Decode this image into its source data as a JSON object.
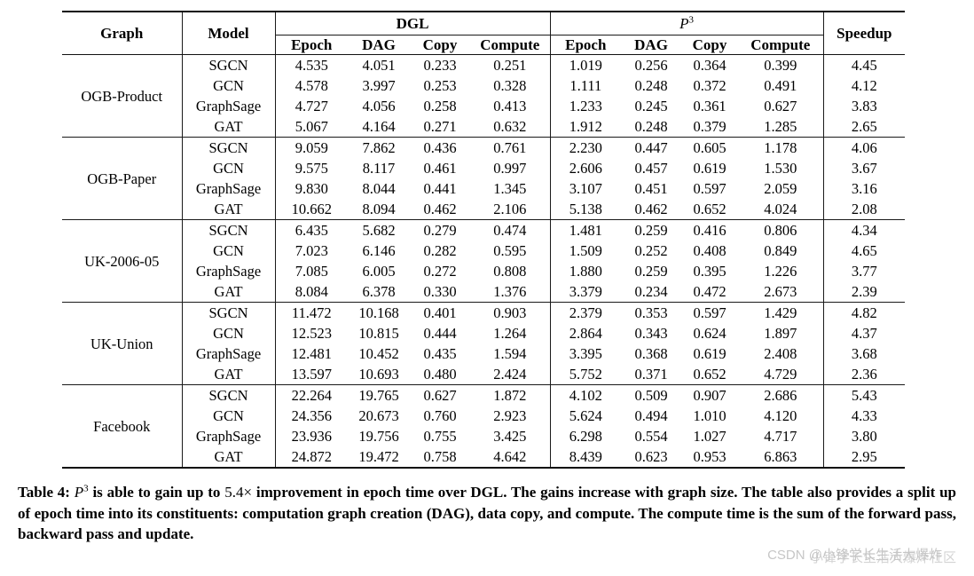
{
  "table": {
    "headers": {
      "graph": "Graph",
      "model": "Model",
      "dgl": "DGL",
      "p3_base": "P",
      "p3_sup": "3",
      "speedup": "Speedup",
      "subcols": [
        "Epoch",
        "DAG",
        "Copy",
        "Compute"
      ]
    },
    "groups": [
      {
        "graph": "OGB-Product",
        "rows": [
          {
            "model": "SGCN",
            "dgl": [
              "4.535",
              "4.051",
              "0.233",
              "0.251"
            ],
            "p3": [
              "1.019",
              "0.256",
              "0.364",
              "0.399"
            ],
            "speedup": "4.45"
          },
          {
            "model": "GCN",
            "dgl": [
              "4.578",
              "3.997",
              "0.253",
              "0.328"
            ],
            "p3": [
              "1.111",
              "0.248",
              "0.372",
              "0.491"
            ],
            "speedup": "4.12"
          },
          {
            "model": "GraphSage",
            "dgl": [
              "4.727",
              "4.056",
              "0.258",
              "0.413"
            ],
            "p3": [
              "1.233",
              "0.245",
              "0.361",
              "0.627"
            ],
            "speedup": "3.83"
          },
          {
            "model": "GAT",
            "dgl": [
              "5.067",
              "4.164",
              "0.271",
              "0.632"
            ],
            "p3": [
              "1.912",
              "0.248",
              "0.379",
              "1.285"
            ],
            "speedup": "2.65"
          }
        ]
      },
      {
        "graph": "OGB-Paper",
        "rows": [
          {
            "model": "SGCN",
            "dgl": [
              "9.059",
              "7.862",
              "0.436",
              "0.761"
            ],
            "p3": [
              "2.230",
              "0.447",
              "0.605",
              "1.178"
            ],
            "speedup": "4.06"
          },
          {
            "model": "GCN",
            "dgl": [
              "9.575",
              "8.117",
              "0.461",
              "0.997"
            ],
            "p3": [
              "2.606",
              "0.457",
              "0.619",
              "1.530"
            ],
            "speedup": "3.67"
          },
          {
            "model": "GraphSage",
            "dgl": [
              "9.830",
              "8.044",
              "0.441",
              "1.345"
            ],
            "p3": [
              "3.107",
              "0.451",
              "0.597",
              "2.059"
            ],
            "speedup": "3.16"
          },
          {
            "model": "GAT",
            "dgl": [
              "10.662",
              "8.094",
              "0.462",
              "2.106"
            ],
            "p3": [
              "5.138",
              "0.462",
              "0.652",
              "4.024"
            ],
            "speedup": "2.08"
          }
        ]
      },
      {
        "graph": "UK-2006-05",
        "rows": [
          {
            "model": "SGCN",
            "dgl": [
              "6.435",
              "5.682",
              "0.279",
              "0.474"
            ],
            "p3": [
              "1.481",
              "0.259",
              "0.416",
              "0.806"
            ],
            "speedup": "4.34"
          },
          {
            "model": "GCN",
            "dgl": [
              "7.023",
              "6.146",
              "0.282",
              "0.595"
            ],
            "p3": [
              "1.509",
              "0.252",
              "0.408",
              "0.849"
            ],
            "speedup": "4.65"
          },
          {
            "model": "GraphSage",
            "dgl": [
              "7.085",
              "6.005",
              "0.272",
              "0.808"
            ],
            "p3": [
              "1.880",
              "0.259",
              "0.395",
              "1.226"
            ],
            "speedup": "3.77"
          },
          {
            "model": "GAT",
            "dgl": [
              "8.084",
              "6.378",
              "0.330",
              "1.376"
            ],
            "p3": [
              "3.379",
              "0.234",
              "0.472",
              "2.673"
            ],
            "speedup": "2.39"
          }
        ]
      },
      {
        "graph": "UK-Union",
        "rows": [
          {
            "model": "SGCN",
            "dgl": [
              "11.472",
              "10.168",
              "0.401",
              "0.903"
            ],
            "p3": [
              "2.379",
              "0.353",
              "0.597",
              "1.429"
            ],
            "speedup": "4.82"
          },
          {
            "model": "GCN",
            "dgl": [
              "12.523",
              "10.815",
              "0.444",
              "1.264"
            ],
            "p3": [
              "2.864",
              "0.343",
              "0.624",
              "1.897"
            ],
            "speedup": "4.37"
          },
          {
            "model": "GraphSage",
            "dgl": [
              "12.481",
              "10.452",
              "0.435",
              "1.594"
            ],
            "p3": [
              "3.395",
              "0.368",
              "0.619",
              "2.408"
            ],
            "speedup": "3.68"
          },
          {
            "model": "GAT",
            "dgl": [
              "13.597",
              "10.693",
              "0.480",
              "2.424"
            ],
            "p3": [
              "5.752",
              "0.371",
              "0.652",
              "4.729"
            ],
            "speedup": "2.36"
          }
        ]
      },
      {
        "graph": "Facebook",
        "rows": [
          {
            "model": "SGCN",
            "dgl": [
              "22.264",
              "19.765",
              "0.627",
              "1.872"
            ],
            "p3": [
              "4.102",
              "0.509",
              "0.907",
              "2.686"
            ],
            "speedup": "5.43"
          },
          {
            "model": "GCN",
            "dgl": [
              "24.356",
              "20.673",
              "0.760",
              "2.923"
            ],
            "p3": [
              "5.624",
              "0.494",
              "1.010",
              "4.120"
            ],
            "speedup": "4.33"
          },
          {
            "model": "GraphSage",
            "dgl": [
              "23.936",
              "19.756",
              "0.755",
              "3.425"
            ],
            "p3": [
              "6.298",
              "0.554",
              "1.027",
              "4.717"
            ],
            "speedup": "3.80"
          },
          {
            "model": "GAT",
            "dgl": [
              "24.872",
              "19.472",
              "0.758",
              "4.642"
            ],
            "p3": [
              "8.439",
              "0.623",
              "0.953",
              "6.863"
            ],
            "speedup": "2.95"
          }
        ]
      }
    ]
  },
  "caption": {
    "segments": [
      {
        "style": "bold",
        "text": "Table 4: "
      },
      {
        "style": "math-italic",
        "text": "P"
      },
      {
        "style": "sup",
        "text": "3"
      },
      {
        "style": "bold",
        "text": " is able to gain up to "
      },
      {
        "style": "math",
        "text": "5.4×"
      },
      {
        "style": "bold",
        "text": " improvement in epoch time over DGL. The gains increase with graph size. The table also provides a split up of epoch time into its constituents: computation graph creation (DAG), data copy, and compute. The compute time is the sum of the forward pass, backward pass and update."
      }
    ]
  },
  "watermark": {
    "text": "CSDN @小锋学长生活大爆炸",
    "text2": "小锋学长生活大爆炸社区"
  }
}
